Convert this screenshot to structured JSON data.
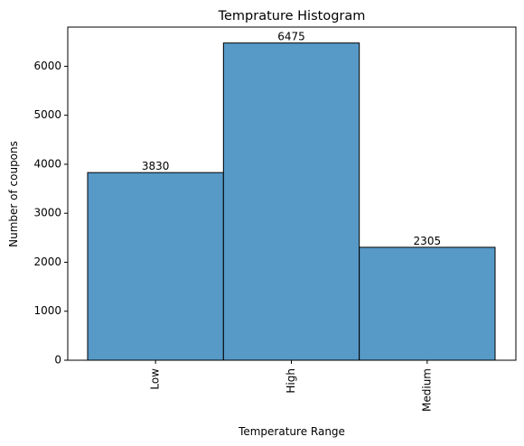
{
  "chart_data": {
    "type": "bar",
    "title": "Temprature Histogram",
    "xlabel": "Temperature Range",
    "ylabel": "Number of coupons",
    "categories": [
      "Low",
      "High",
      "Medium"
    ],
    "values": [
      3830,
      6475,
      2305
    ],
    "data_labels": [
      "3830",
      "6475",
      "2305"
    ],
    "ylim": [
      0,
      6800
    ],
    "yticks": [
      0,
      1000,
      2000,
      3000,
      4000,
      5000,
      6000
    ],
    "ytick_labels": [
      "0",
      "1000",
      "2000",
      "3000",
      "4000",
      "5000",
      "6000"
    ],
    "x_tick_rotation": "vertical",
    "grid": false,
    "legend": "none",
    "bar_color": "#5799C7",
    "bar_edge_color": "#000000"
  }
}
